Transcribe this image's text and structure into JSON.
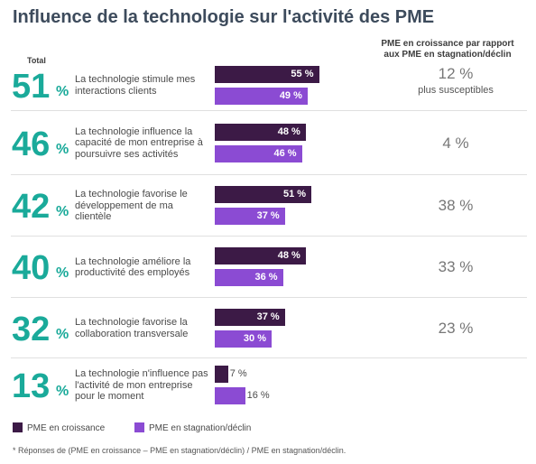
{
  "title": "Influence de la technologie sur l'activité des PME",
  "total_header": "Total",
  "right_header": [
    "PME en croissance par rapport",
    "aux PME en stagnation/déclin"
  ],
  "colors": {
    "growth": "#3c1a46",
    "stagnation": "#8b4bd3",
    "total": "#1aaa9a"
  },
  "chart_data": {
    "type": "bar",
    "orientation": "horizontal",
    "categories": [
      "La technologie stimule mes interactions clients",
      "La technologie influence la capacité de mon entreprise à poursuivre ses activités",
      "La technologie favorise le développement de ma clientèle",
      "La technologie améliore la productivité des employés",
      "La technologie favorise la collaboration transversale",
      "La technologie n'influence pas l'activité de mon entreprise pour le moment"
    ],
    "series": [
      {
        "name": "PME en croissance",
        "values": [
          55,
          48,
          51,
          48,
          37,
          7
        ]
      },
      {
        "name": "PME en stagnation/déclin",
        "values": [
          49,
          46,
          37,
          36,
          30,
          16
        ]
      }
    ],
    "totals": [
      51,
      46,
      42,
      40,
      32,
      13
    ],
    "difference": [
      "12 %",
      "4 %",
      "38 %",
      "33 %",
      "23 %",
      ""
    ],
    "difference_sub": "plus susceptibles",
    "legend": [
      "PME en croissance",
      "PME en stagnation/déclin"
    ],
    "footnote": "* Réponses de (PME en croissance – PME en stagnation/déclin) / PME en stagnation/déclin.",
    "unit": "%"
  }
}
